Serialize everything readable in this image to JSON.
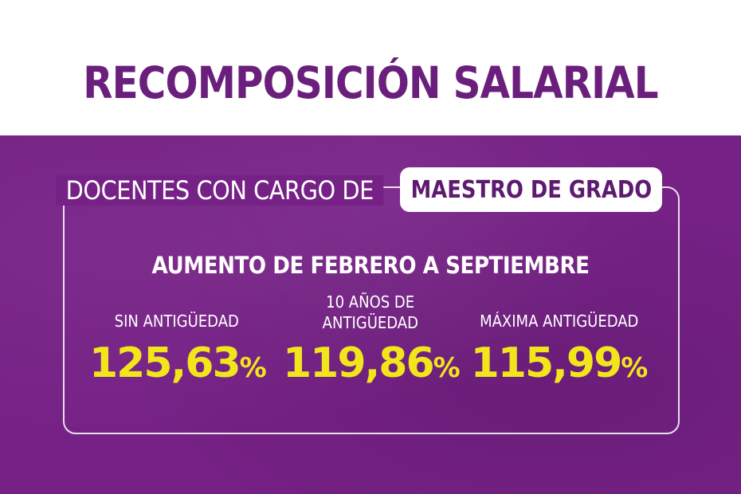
{
  "title": "RECOMPOSICIÓN SALARIAL",
  "subtitle": {
    "prefix": "DOCENTES CON CARGO DE",
    "highlight": "MAESTRO DE GRADO"
  },
  "headline": "AUMENTO DE FEBRERO A SEPTIEMBRE",
  "stats": [
    {
      "label": "SIN ANTIGÜEDAD",
      "value": "125,63",
      "unit": "%"
    },
    {
      "label_line1": "10 AÑOS DE",
      "label_line2": "ANTIGÜEDAD",
      "value": "119,86",
      "unit": "%"
    },
    {
      "label": "MÁXIMA ANTIGÜEDAD",
      "value": "115,99",
      "unit": "%"
    }
  ],
  "colors": {
    "purple": "#762186",
    "title_purple": "#6b1f7d",
    "yellow": "#f2e51c",
    "white": "#ffffff"
  }
}
